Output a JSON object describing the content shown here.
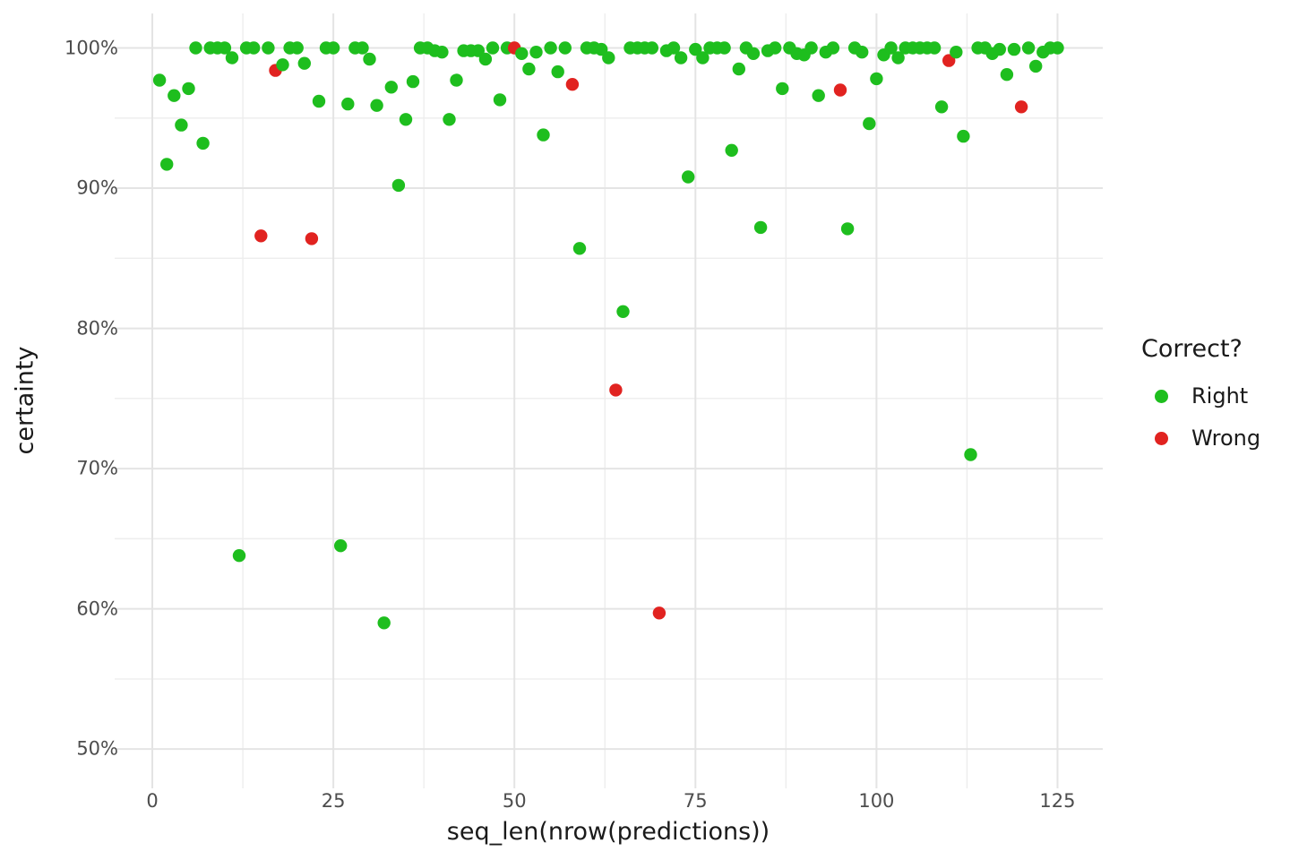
{
  "chart_data": {
    "type": "scatter",
    "title": "",
    "xlabel": "seq_len(nrow(predictions))",
    "ylabel": "certainty",
    "xlim": [
      -5.2,
      131.25
    ],
    "ylim": [
      47.2,
      102.46
    ],
    "x_ticks": {
      "values": [
        0,
        25,
        50,
        75,
        100,
        125
      ],
      "labels": [
        "0",
        "25",
        "50",
        "75",
        "100",
        "125"
      ]
    },
    "y_ticks": {
      "values": [
        100,
        90,
        80,
        70,
        60,
        50
      ],
      "labels": [
        "100%",
        "90%",
        "80%",
        "70%",
        "60%",
        "50%"
      ]
    },
    "x_minor_gridlines": [
      12.5,
      37.5,
      62.5,
      87.5,
      112.5
    ],
    "y_minor_gridlines": [
      95,
      85,
      75,
      65,
      55
    ],
    "grid": {
      "on": true,
      "major_color": "#E4E4E4",
      "minor_color": "#EDEDED"
    },
    "point_radius": 7.2,
    "legend": {
      "title": "Correct?",
      "position": "right",
      "entries": [
        {
          "label": "Right",
          "color": "#1EBE1E"
        },
        {
          "label": "Wrong",
          "color": "#E12320"
        }
      ]
    },
    "series": [
      {
        "name": "Right",
        "color": "#1EBE1E",
        "x": [
          1,
          2,
          3,
          4,
          5,
          6,
          7,
          8,
          9,
          10,
          11,
          12,
          13,
          14,
          16,
          18,
          19,
          20,
          21,
          23,
          24,
          25,
          26,
          27,
          28,
          29,
          30,
          31,
          32,
          33,
          34,
          35,
          36,
          37,
          38,
          39,
          40,
          41,
          42,
          43,
          44,
          45,
          46,
          47,
          48,
          49,
          51,
          52,
          53,
          54,
          55,
          56,
          57,
          59,
          60,
          61,
          62,
          63,
          65,
          66,
          67,
          68,
          69,
          71,
          72,
          73,
          74,
          75,
          76,
          77,
          78,
          79,
          80,
          81,
          82,
          83,
          84,
          85,
          86,
          87,
          88,
          89,
          90,
          91,
          92,
          93,
          94,
          96,
          97,
          98,
          99,
          100,
          101,
          102,
          103,
          104,
          105,
          106,
          107,
          108,
          109,
          111,
          112,
          113,
          114,
          115,
          116,
          117,
          118,
          119,
          121,
          122,
          123,
          124,
          125
        ],
        "y": [
          97.7,
          91.7,
          96.6,
          94.5,
          97.1,
          100,
          93.2,
          100,
          100,
          100,
          99.3,
          63.8,
          100,
          100,
          100,
          98.8,
          100,
          100,
          98.9,
          96.2,
          100,
          100,
          64.5,
          96.0,
          100,
          100,
          99.2,
          95.9,
          59.0,
          97.2,
          90.2,
          94.9,
          97.6,
          100,
          100,
          99.8,
          99.7,
          94.9,
          97.7,
          99.8,
          99.8,
          99.8,
          99.2,
          100,
          96.3,
          100,
          99.6,
          98.5,
          99.7,
          93.8,
          100,
          98.3,
          100,
          85.7,
          100,
          100,
          99.9,
          99.3,
          81.2,
          100,
          100,
          100,
          100,
          99.8,
          100,
          99.3,
          90.8,
          99.9,
          99.3,
          100,
          100,
          100,
          92.7,
          98.5,
          100,
          99.6,
          87.2,
          99.8,
          100,
          97.1,
          100,
          99.6,
          99.5,
          100,
          96.6,
          99.7,
          100,
          87.1,
          100,
          99.7,
          94.6,
          97.8,
          99.5,
          100,
          99.3,
          100,
          100,
          100,
          100,
          100,
          95.8,
          99.7,
          93.7,
          71.0,
          100,
          100,
          99.6,
          99.9,
          98.1,
          99.9,
          100,
          98.7,
          99.7,
          100,
          100
        ]
      },
      {
        "name": "Wrong",
        "color": "#E12320",
        "x": [
          15,
          17,
          22,
          50,
          58,
          64,
          70,
          95,
          110,
          120
        ],
        "y": [
          86.6,
          98.4,
          86.4,
          100,
          97.4,
          75.6,
          59.7,
          97.0,
          99.1,
          95.8
        ]
      }
    ]
  }
}
